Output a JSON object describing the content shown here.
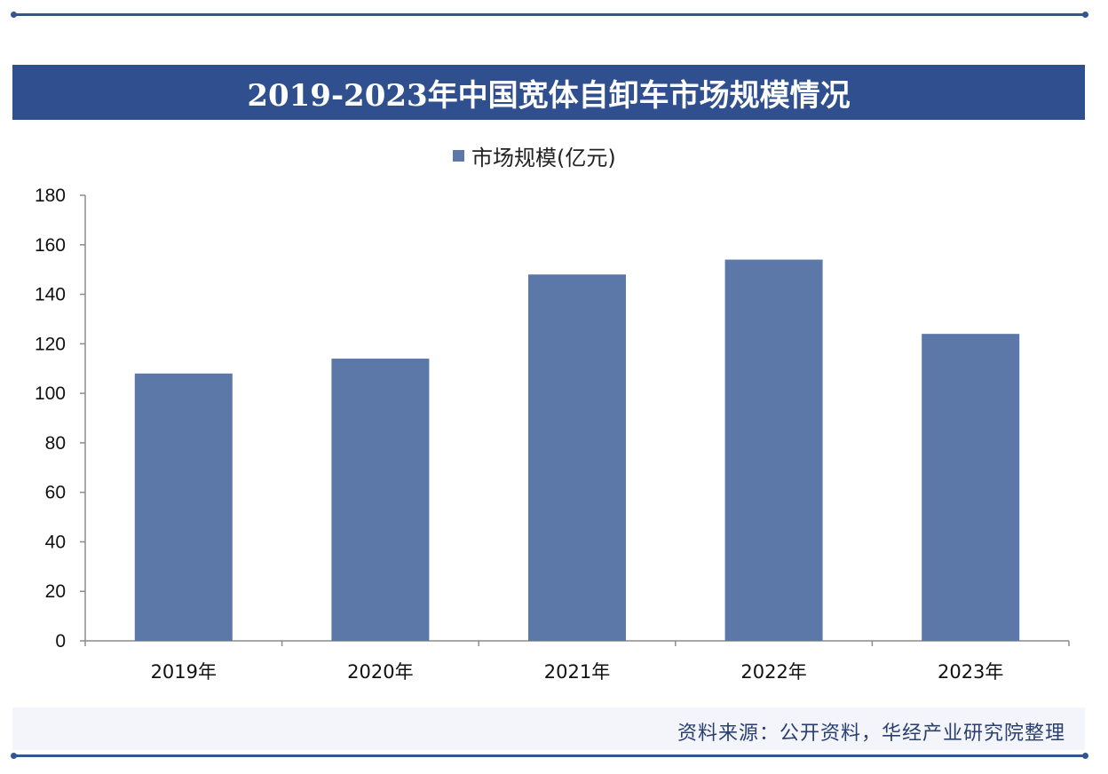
{
  "title": "2019-2023年中国宽体自卸车市场规模情况",
  "legend": {
    "label": "市场规模(亿元)",
    "color": "#5b78a8"
  },
  "source": "资料来源：公开资料，华经产业研究院整理",
  "chart_data": {
    "type": "bar",
    "title": "2019-2023年中国宽体自卸车市场规模情况",
    "categories": [
      "2019年",
      "2020年",
      "2021年",
      "2022年",
      "2023年"
    ],
    "series": [
      {
        "name": "市场规模(亿元)",
        "values": [
          108,
          114,
          148,
          154,
          124
        ],
        "color": "#5b78a8"
      }
    ],
    "yticks": [
      0,
      20,
      40,
      60,
      80,
      100,
      120,
      140,
      160,
      180
    ],
    "ylim": [
      0,
      180
    ],
    "grid": false,
    "legend_position": "top-center"
  }
}
